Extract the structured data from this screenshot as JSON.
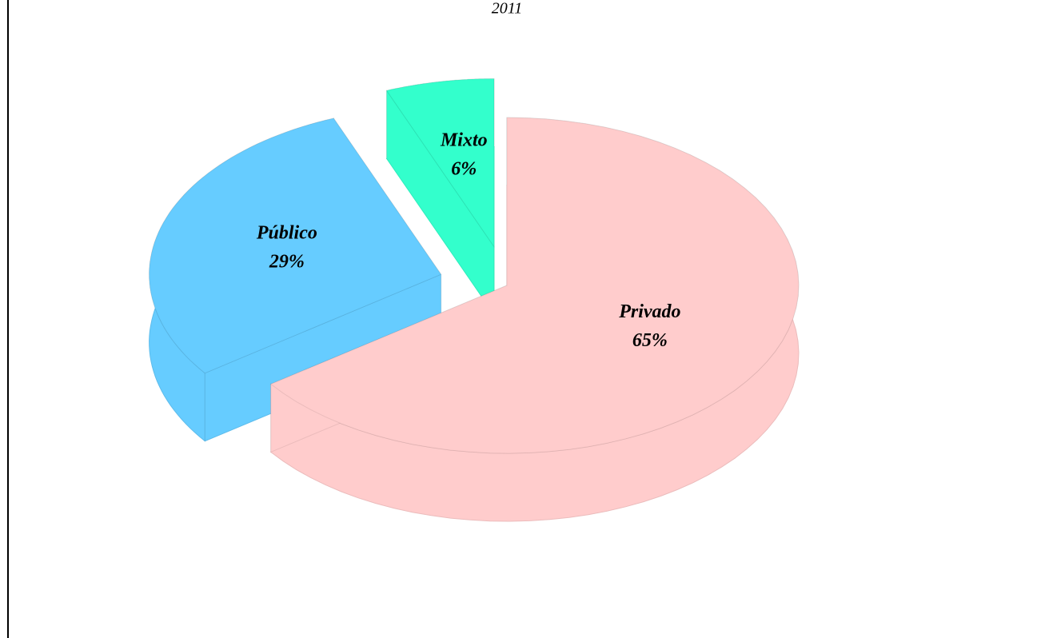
{
  "chart_data": {
    "type": "pie",
    "title": "2011",
    "categories": [
      "Privado",
      "Público",
      "Mixto"
    ],
    "values": [
      65,
      29,
      6
    ],
    "value_labels": [
      "65%",
      "29%",
      "6%"
    ],
    "colors": [
      "#ffcccc",
      "#66ccff",
      "#33ffcc"
    ]
  }
}
